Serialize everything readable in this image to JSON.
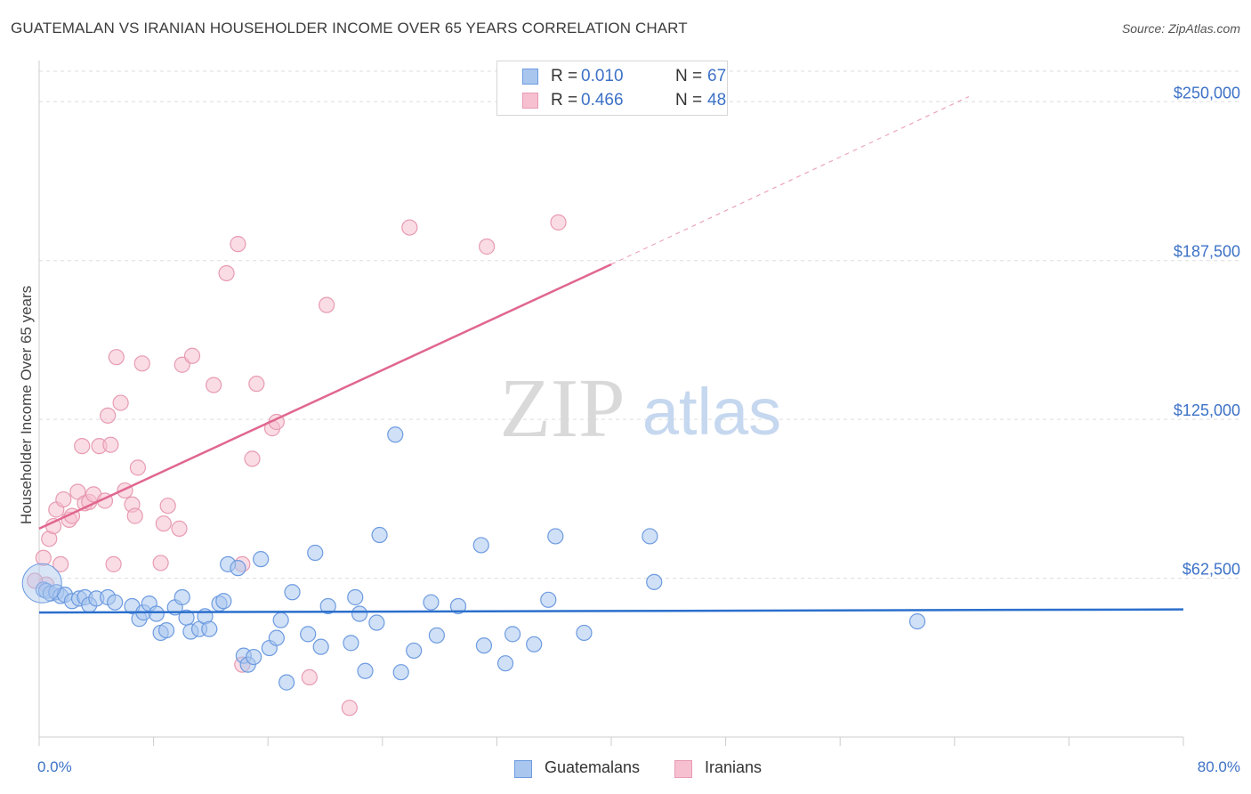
{
  "title": "GUATEMALAN VS IRANIAN HOUSEHOLDER INCOME OVER 65 YEARS CORRELATION CHART",
  "source": "Source: ZipAtlas.com",
  "watermark": {
    "zip": "ZIP",
    "atlas": "atlas"
  },
  "legend_stats": [
    {
      "r_label": "R =",
      "r_value": "0.010",
      "n_label": "N =",
      "n_value": "67"
    },
    {
      "r_label": "R =",
      "r_value": "0.466",
      "n_label": "N =",
      "n_value": "48"
    }
  ],
  "colors": {
    "guatemalan_fill": "#a9c6ee",
    "guatemalan_stroke": "#6d9be0",
    "guatemalan_line": "#2b6fcc",
    "iranian_fill": "#f6c0d0",
    "iranian_stroke": "#e79bb2",
    "iranian_line": "#e06690",
    "tick_label": "#3d72c6",
    "grid": "#dddddd"
  },
  "chart_data": {
    "type": "scatter",
    "title": "GUATEMALAN VS IRANIAN HOUSEHOLDER INCOME OVER 65 YEARS CORRELATION CHART",
    "xlabel": "",
    "ylabel": "Householder Income Over 65 years",
    "xlim": [
      0,
      80
    ],
    "ylim": [
      0,
      262000
    ],
    "x_tick_labels": [
      "0.0%",
      "80.0%"
    ],
    "y_ticks": [
      62500,
      125000,
      187500,
      250000
    ],
    "y_tick_labels": [
      "$62,500",
      "$125,000",
      "$187,500",
      "$250,000"
    ],
    "grid": true,
    "legend_position": "top-center and bottom",
    "series": [
      {
        "name": "Guatemalans",
        "r": 0.01,
        "n": 67,
        "trend": {
          "x": [
            0,
            80
          ],
          "y": [
            49000,
            50200
          ]
        },
        "points": [
          [
            0.3,
            58000
          ],
          [
            0.5,
            57500
          ],
          [
            0.8,
            56500
          ],
          [
            1.2,
            57000
          ],
          [
            1.5,
            55500
          ],
          [
            1.8,
            56000
          ],
          [
            2.3,
            53500
          ],
          [
            2.8,
            54500
          ],
          [
            3.2,
            55000
          ],
          [
            3.5,
            52000
          ],
          [
            4.0,
            54500
          ],
          [
            4.8,
            55000
          ],
          [
            5.3,
            53000
          ],
          [
            6.5,
            51500
          ],
          [
            7.0,
            46500
          ],
          [
            7.3,
            49000
          ],
          [
            7.7,
            52500
          ],
          [
            8.2,
            48500
          ],
          [
            8.5,
            41000
          ],
          [
            8.9,
            42000
          ],
          [
            9.5,
            51000
          ],
          [
            10.0,
            55000
          ],
          [
            10.3,
            47000
          ],
          [
            10.6,
            41500
          ],
          [
            11.2,
            42500
          ],
          [
            11.6,
            47500
          ],
          [
            11.9,
            42500
          ],
          [
            12.6,
            52500
          ],
          [
            12.9,
            53500
          ],
          [
            13.2,
            68000
          ],
          [
            13.9,
            66500
          ],
          [
            14.3,
            32000
          ],
          [
            14.6,
            28500
          ],
          [
            15.0,
            31500
          ],
          [
            15.5,
            70000
          ],
          [
            16.1,
            35000
          ],
          [
            16.6,
            39000
          ],
          [
            16.9,
            46000
          ],
          [
            17.3,
            21500
          ],
          [
            17.7,
            57000
          ],
          [
            18.8,
            40500
          ],
          [
            19.3,
            72500
          ],
          [
            19.7,
            35500
          ],
          [
            20.2,
            51500
          ],
          [
            21.8,
            37000
          ],
          [
            22.1,
            55000
          ],
          [
            22.4,
            48500
          ],
          [
            22.8,
            26000
          ],
          [
            23.8,
            79500
          ],
          [
            23.6,
            45000
          ],
          [
            24.9,
            119000
          ],
          [
            25.3,
            25500
          ],
          [
            26.2,
            34000
          ],
          [
            27.4,
            53000
          ],
          [
            27.8,
            40000
          ],
          [
            29.3,
            51500
          ],
          [
            30.9,
            75500
          ],
          [
            31.1,
            36000
          ],
          [
            32.6,
            29000
          ],
          [
            33.1,
            40500
          ],
          [
            34.6,
            36500
          ],
          [
            35.6,
            54000
          ],
          [
            36.1,
            79000
          ],
          [
            38.1,
            41000
          ],
          [
            42.7,
            79000
          ],
          [
            43.0,
            61000
          ],
          [
            61.4,
            45500
          ]
        ]
      },
      {
        "name": "Iranians",
        "r": 0.466,
        "n": 48,
        "trend": {
          "x": [
            0,
            40
          ],
          "y": [
            82000,
            186000
          ]
        },
        "trend_dashed": {
          "x": [
            40,
            65
          ],
          "y": [
            186000,
            252000
          ]
        },
        "points": [
          [
            0.3,
            70500
          ],
          [
            0.5,
            60000
          ],
          [
            0.7,
            78000
          ],
          [
            1.0,
            83000
          ],
          [
            1.2,
            89500
          ],
          [
            1.5,
            68000
          ],
          [
            1.7,
            93500
          ],
          [
            2.1,
            85500
          ],
          [
            2.3,
            87000
          ],
          [
            2.7,
            96500
          ],
          [
            3.0,
            114500
          ],
          [
            3.2,
            92000
          ],
          [
            3.5,
            92500
          ],
          [
            3.8,
            95500
          ],
          [
            4.2,
            114500
          ],
          [
            4.6,
            93000
          ],
          [
            4.8,
            126500
          ],
          [
            5.0,
            115000
          ],
          [
            5.2,
            68000
          ],
          [
            5.4,
            149500
          ],
          [
            5.7,
            131500
          ],
          [
            6.0,
            97000
          ],
          [
            6.5,
            91500
          ],
          [
            6.7,
            87000
          ],
          [
            6.9,
            106000
          ],
          [
            7.2,
            147000
          ],
          [
            8.5,
            68500
          ],
          [
            8.7,
            84000
          ],
          [
            9.0,
            91000
          ],
          [
            9.8,
            82000
          ],
          [
            10.0,
            146500
          ],
          [
            10.7,
            150000
          ],
          [
            12.2,
            138500
          ],
          [
            13.1,
            182500
          ],
          [
            13.9,
            194000
          ],
          [
            14.2,
            28500
          ],
          [
            14.2,
            68000
          ],
          [
            15.2,
            139000
          ],
          [
            14.9,
            109500
          ],
          [
            16.3,
            121500
          ],
          [
            16.6,
            124000
          ],
          [
            18.9,
            23500
          ],
          [
            20.1,
            170000
          ],
          [
            21.7,
            11500
          ],
          [
            25.9,
            200500
          ],
          [
            31.3,
            193000
          ],
          [
            36.3,
            202500
          ],
          [
            -0.3,
            61500
          ]
        ]
      }
    ]
  }
}
